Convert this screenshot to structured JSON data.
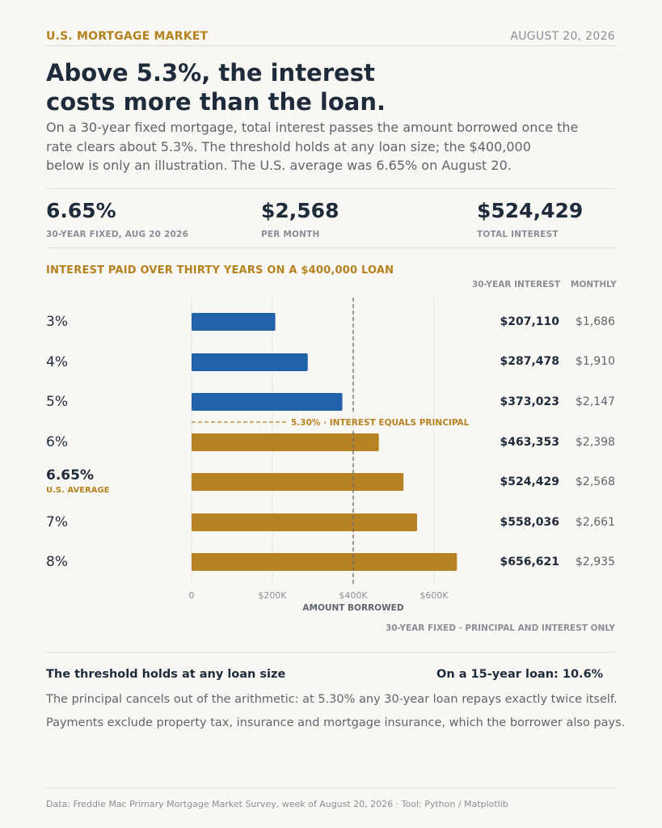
{
  "header": {
    "kicker": "U.S. MORTGAGE MARKET",
    "date": "AUGUST 20, 2026"
  },
  "headline": [
    "Above 5.3%, the interest",
    "costs more than the loan."
  ],
  "dek": [
    "On a 30-year fixed mortgage, total interest passes the amount borrowed once the",
    "rate clears about 5.3%. The threshold holds at any loan size; the $400,000",
    "below is only an illustration. The U.S. average was 6.65% on August 20."
  ],
  "stats": [
    {
      "value": "6.65%",
      "label": "30-YEAR FIXED, AUG 20 2026"
    },
    {
      "value": "$2,568",
      "label": "PER MONTH"
    },
    {
      "value": "$524,429",
      "label": "TOTAL INTEREST"
    }
  ],
  "table_headers": {
    "interest": "30-YEAR INTEREST",
    "monthly": "MONTHLY"
  },
  "rows": [
    {
      "rate": "3%",
      "sub": "",
      "interest": "$207,110",
      "monthly": "$1,686"
    },
    {
      "rate": "4%",
      "sub": "",
      "interest": "$287,478",
      "monthly": "$1,910"
    },
    {
      "rate": "5%",
      "sub": "",
      "interest": "$373,023",
      "monthly": "$2,147"
    },
    {
      "rate": "6%",
      "sub": "",
      "interest": "$463,353",
      "monthly": "$2,398"
    },
    {
      "rate": "6.65%",
      "sub": "U.S. AVERAGE",
      "interest": "$524,429",
      "monthly": "$2,568"
    },
    {
      "rate": "7%",
      "sub": "",
      "interest": "$558,036",
      "monthly": "$2,661"
    },
    {
      "rate": "8%",
      "sub": "",
      "interest": "$656,621",
      "monthly": "$2,935"
    }
  ],
  "chart_data": {
    "type": "bar",
    "orientation": "horizontal",
    "title": "INTEREST PAID OVER THIRTY YEARS ON A $400,000 LOAN",
    "categories": [
      "3%",
      "4%",
      "5%",
      "6%",
      "6.65%",
      "7%",
      "8%"
    ],
    "values": [
      207110,
      287478,
      373023,
      463353,
      524429,
      558036,
      656621
    ],
    "xlim": [
      0,
      800000
    ],
    "xticks": [
      0,
      200000,
      400000,
      600000
    ],
    "xtick_labels": [
      "0",
      "$200K",
      "$400K",
      "$600K"
    ],
    "reference_line": {
      "value": 400000,
      "label": "AMOUNT BORROWED"
    },
    "threshold": {
      "rate_label": "5.30%",
      "label": "INTEREST EQUALS PRINCIPAL",
      "after_index": 2
    },
    "colors": {
      "below": "#2163ab",
      "above": "#b78223",
      "reference": "#6b6b6b"
    },
    "grid": true,
    "legend": "none"
  },
  "footnote": "30-YEAR FIXED  ·  PRINCIPAL AND INTEREST ONLY",
  "bottom": {
    "left_head": "The threshold holds at any loan size",
    "right_head": "On a 15-year loan: 10.6%",
    "lines": [
      "The principal cancels out of the arithmetic: at 5.30% any 30-year loan repays exactly twice itself.",
      "Payments exclude property tax, insurance and mortgage insurance, which the borrower also pays."
    ]
  },
  "source": "Data: Freddie Mac Primary Mortgage Market Survey, week of August 20, 2026  ·  Tool: Python / Matplotlib"
}
